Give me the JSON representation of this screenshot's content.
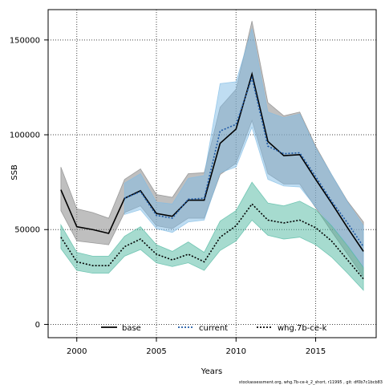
{
  "chart_data": {
    "type": "line",
    "title": "",
    "xlabel": "Years",
    "ylabel": "SSB",
    "xlim": [
      1998.2,
      2018.8
    ],
    "ylim": [
      -7000,
      166000
    ],
    "x_ticks": [
      2000,
      2005,
      2010,
      2015
    ],
    "x_tick_labels": [
      "2000",
      "2005",
      "2010",
      "2015"
    ],
    "y_ticks": [
      0,
      50000,
      100000,
      150000
    ],
    "y_tick_labels": [
      "0",
      "50000",
      "100000",
      "150000"
    ],
    "grid": true,
    "legend_position": "bottom-inside",
    "x": [
      1999,
      2000,
      2001,
      2002,
      2003,
      2004,
      2005,
      2006,
      2007,
      2008,
      2009,
      2010,
      2011,
      2012,
      2013,
      2014,
      2015,
      2016,
      2017,
      2018
    ],
    "series": [
      {
        "name": "base",
        "line_style": "solid",
        "color": "#000000",
        "band_color": "#808080",
        "values": [
          71000,
          51500,
          50000,
          48000,
          66500,
          70500,
          58500,
          57000,
          65500,
          65500,
          95500,
          103000,
          132000,
          96500,
          89000,
          89500,
          76500,
          64000,
          51000,
          38500
        ],
        "lower": [
          60000,
          44000,
          43000,
          42000,
          59000,
          62500,
          52000,
          50500,
          56000,
          56000,
          79000,
          85000,
          107500,
          79500,
          74000,
          74000,
          61500,
          49000,
          37000,
          25000
        ],
        "upper": [
          83000,
          61000,
          59000,
          56000,
          76500,
          82000,
          68500,
          67000,
          79500,
          80000,
          114500,
          124000,
          160000,
          117000,
          110000,
          112000,
          94000,
          79000,
          65000,
          54000
        ]
      },
      {
        "name": "current",
        "line_style": "dotted",
        "color": "#1f5aa6",
        "band_color": "#7fbce6",
        "values": [
          null,
          null,
          null,
          null,
          66500,
          70000,
          57500,
          56000,
          66000,
          66500,
          102000,
          105500,
          130000,
          94000,
          90000,
          90500,
          78000,
          65000,
          53500,
          41000
        ],
        "lower": [
          null,
          null,
          null,
          null,
          58000,
          60500,
          50500,
          48500,
          54000,
          55000,
          80000,
          83000,
          104000,
          76500,
          73000,
          72500,
          62000,
          52000,
          42000,
          30000
        ],
        "upper": [
          null,
          null,
          null,
          null,
          74500,
          79500,
          64500,
          63500,
          77000,
          78500,
          127000,
          128000,
          156000,
          112000,
          109000,
          111000,
          93000,
          79000,
          64500,
          52000
        ]
      },
      {
        "name": "whg.7b-ce-k",
        "line_style": "dotted",
        "color": "#000000",
        "band_color": "#4db8a0",
        "values": [
          46000,
          33000,
          31000,
          31000,
          41000,
          45000,
          37000,
          34000,
          37000,
          33000,
          46000,
          52000,
          63500,
          55000,
          53500,
          55000,
          51000,
          44000,
          34000,
          24000
        ],
        "lower": [
          40000,
          28500,
          27000,
          27000,
          36000,
          39500,
          32500,
          30500,
          32500,
          28500,
          39000,
          44000,
          55000,
          47000,
          45000,
          46000,
          42000,
          35500,
          27000,
          18000
        ],
        "upper": [
          52500,
          38000,
          36000,
          36000,
          46500,
          51500,
          42000,
          38500,
          43500,
          38000,
          54500,
          60000,
          75000,
          64000,
          62500,
          65000,
          60500,
          52000,
          41500,
          30000
        ]
      }
    ]
  },
  "footer": "stockassessment.org, whg.7b-ce-k_2_short, r11995 , git: df0b7c1bcb83"
}
